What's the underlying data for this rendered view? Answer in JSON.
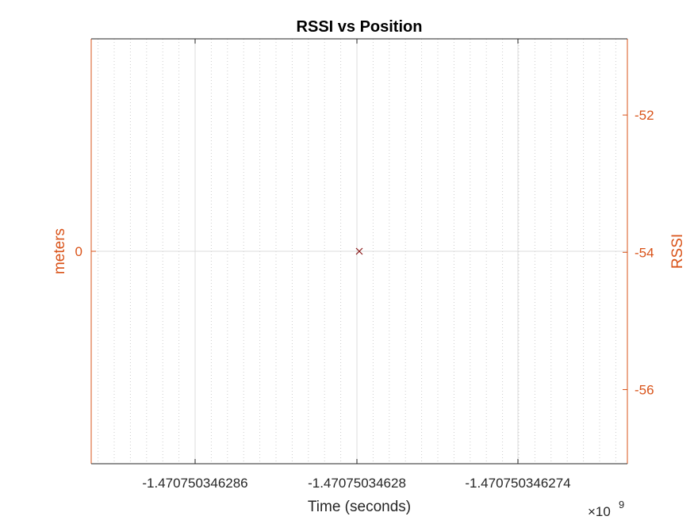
{
  "chart_data": {
    "type": "scatter",
    "title": "RSSI vs Position",
    "xlabel": "Time (seconds)",
    "x_exponent_label": "×10",
    "x_exponent": "9",
    "x_tick_labels": [
      "-1.470750346286",
      "-1.47075034628",
      "-1.470750346274"
    ],
    "left_axis": {
      "label": "meters",
      "tick_labels": [
        "0"
      ],
      "ylim": [
        -1.54,
        1.54
      ]
    },
    "right_axis": {
      "label": "RSSI",
      "tick_labels": [
        "-52",
        "-54",
        "-56"
      ],
      "ylim": [
        -57.08,
        -50.89
      ]
    },
    "series": [
      {
        "points": [
          {
            "x": -1.47075034628,
            "y": 0
          }
        ],
        "marker": "x",
        "color": "#8b1a1a"
      }
    ],
    "grid": true,
    "colors": {
      "axis_left": "#d95319",
      "axis_right": "#d95319",
      "grid_major": "#dcdcdc",
      "grid_minor": "#cccccc"
    }
  }
}
